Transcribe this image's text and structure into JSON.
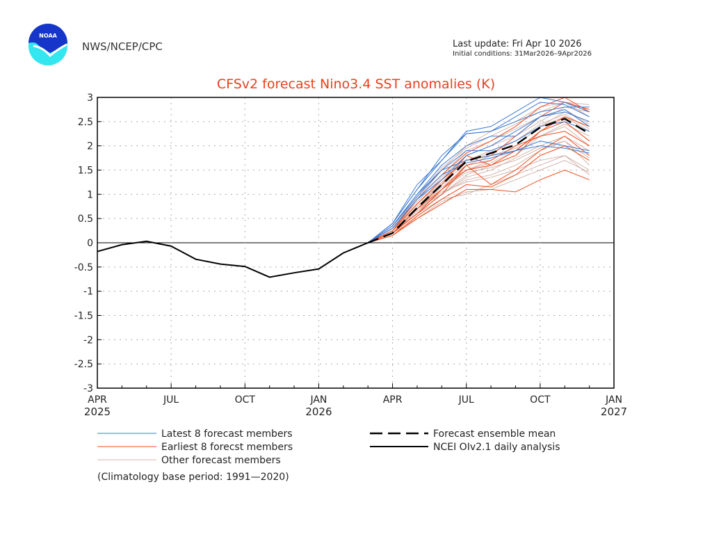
{
  "header": {
    "agency": "NWS/NCEP/CPC",
    "logo_text": "NOAA",
    "last_update": "Last update: Fri Apr 10 2026",
    "initial_conditions": "Initial conditions: 31Mar2026–9Apr2026"
  },
  "chart_data": {
    "type": "line",
    "title": "CFSv2 forecast Nino3.4 SST anomalies (K)",
    "ylim": [
      -3,
      3
    ],
    "yticks": [
      "3",
      "2.5",
      "2",
      "1.5",
      "1",
      "0.5",
      "0",
      "-0.5",
      "-1",
      "-1.5",
      "-2",
      "-2.5",
      "-3"
    ],
    "xticks": [
      {
        "month": "APR",
        "year": "2025"
      },
      {
        "month": "JUL",
        "year": ""
      },
      {
        "month": "OCT",
        "year": ""
      },
      {
        "month": "JAN",
        "year": "2026"
      },
      {
        "month": "APR",
        "year": ""
      },
      {
        "month": "JUL",
        "year": ""
      },
      {
        "month": "OCT",
        "year": ""
      },
      {
        "month": "JAN",
        "year": "2027"
      }
    ],
    "grid": true,
    "colors": {
      "latest": "#3a78d0",
      "earliest": "#f04a1a",
      "other": "#d4b4ac",
      "title": "#e8401c"
    },
    "analysis": {
      "name": "NCEI OIv2.1 daily analysis",
      "x": [
        "2025-04",
        "2025-05",
        "2025-06",
        "2025-07",
        "2025-08",
        "2025-09",
        "2025-10",
        "2025-11",
        "2025-12",
        "2026-01",
        "2026-02",
        "2026-03"
      ],
      "values": [
        -0.18,
        -0.04,
        0.03,
        -0.07,
        -0.34,
        -0.44,
        -0.49,
        -0.71,
        -0.62,
        -0.54,
        -0.21,
        0.0
      ]
    },
    "forecast_x": [
      "2026-03",
      "2026-04",
      "2026-05",
      "2026-06",
      "2026-07",
      "2026-08",
      "2026-09",
      "2026-10",
      "2026-11",
      "2026-12"
    ],
    "mean": {
      "name": "Forecast ensemble mean",
      "values": [
        0,
        0.2,
        0.72,
        1.2,
        1.68,
        1.85,
        2.02,
        2.38,
        2.56,
        2.25
      ]
    },
    "latest": {
      "name": "Latest 8 forecast members",
      "members": [
        [
          0,
          0.4,
          1.2,
          1.7,
          2.3,
          2.4,
          2.7,
          3.0,
          2.9,
          2.7
        ],
        [
          0,
          0.4,
          1.1,
          1.8,
          2.25,
          2.3,
          2.5,
          2.7,
          2.8,
          2.8
        ],
        [
          0,
          0.35,
          1.0,
          1.6,
          2.0,
          2.2,
          2.2,
          2.6,
          2.75,
          2.4
        ],
        [
          0,
          0.35,
          0.95,
          1.5,
          1.7,
          1.8,
          1.9,
          2.1,
          2.0,
          1.9
        ],
        [
          0,
          0.3,
          0.9,
          1.4,
          1.65,
          1.75,
          1.9,
          2.0,
          1.95,
          1.85
        ],
        [
          0,
          0.4,
          1.1,
          1.7,
          2.25,
          2.3,
          2.6,
          2.9,
          2.85,
          2.6
        ],
        [
          0,
          0.3,
          0.9,
          1.3,
          1.8,
          2.0,
          2.3,
          2.6,
          2.7,
          2.5
        ],
        [
          0,
          0.35,
          1.0,
          1.5,
          1.9,
          1.9,
          2.1,
          2.4,
          2.5,
          2.3
        ]
      ]
    },
    "earliest": {
      "name": "Earliest 8 forecst members",
      "members": [
        [
          0,
          0.15,
          0.5,
          0.8,
          1.1,
          1.1,
          1.05,
          1.3,
          1.5,
          1.3
        ],
        [
          0,
          0.2,
          0.6,
          1.0,
          1.6,
          1.2,
          1.5,
          1.9,
          2.2,
          1.8
        ],
        [
          0,
          0.2,
          0.7,
          1.2,
          1.8,
          1.6,
          1.8,
          2.3,
          2.6,
          2.4
        ],
        [
          0,
          0.25,
          0.8,
          1.3,
          1.7,
          1.8,
          2.2,
          2.6,
          2.9,
          2.75
        ],
        [
          0,
          0.2,
          0.6,
          1.1,
          1.5,
          1.6,
          1.9,
          2.3,
          2.5,
          2.1
        ],
        [
          0,
          0.15,
          0.55,
          0.9,
          1.2,
          1.15,
          1.4,
          1.8,
          2.0,
          1.7
        ],
        [
          0,
          0.25,
          0.9,
          1.4,
          1.85,
          2.1,
          2.4,
          2.8,
          3.0,
          2.7
        ],
        [
          0,
          0.2,
          0.7,
          1.1,
          1.6,
          1.7,
          2.0,
          2.2,
          2.3,
          2.0
        ]
      ]
    },
    "other": {
      "name": "Other forecast members",
      "members": [
        [
          0,
          0.2,
          0.6,
          0.9,
          1.0,
          1.2,
          1.4,
          1.6,
          1.8,
          1.5
        ],
        [
          0,
          0.25,
          0.7,
          1.0,
          1.3,
          1.4,
          1.6,
          1.9,
          2.1,
          1.6
        ],
        [
          0,
          0.3,
          0.8,
          1.3,
          1.7,
          1.9,
          2.1,
          2.4,
          2.6,
          2.3
        ],
        [
          0,
          0.2,
          0.6,
          1.0,
          1.4,
          1.6,
          1.8,
          2.2,
          2.4,
          2.0
        ],
        [
          0,
          0.3,
          0.9,
          1.5,
          2.0,
          2.3,
          2.5,
          2.8,
          2.9,
          2.6
        ],
        [
          0,
          0.25,
          0.75,
          1.2,
          1.5,
          1.7,
          2.0,
          2.4,
          2.7,
          2.5
        ],
        [
          0,
          0.2,
          0.65,
          1.05,
          1.25,
          1.35,
          1.5,
          1.7,
          1.8,
          1.4
        ],
        [
          0,
          0.3,
          0.85,
          1.35,
          1.8,
          2.0,
          2.2,
          2.5,
          2.8,
          2.7
        ],
        [
          0,
          0.2,
          0.5,
          0.85,
          1.05,
          1.1,
          1.3,
          1.5,
          1.7,
          1.45
        ],
        [
          0,
          0.25,
          0.8,
          1.25,
          1.6,
          1.8,
          1.95,
          2.2,
          2.45,
          2.2
        ],
        [
          0,
          0.3,
          0.95,
          1.55,
          1.95,
          2.2,
          2.45,
          2.7,
          2.9,
          2.85
        ],
        [
          0,
          0.2,
          0.6,
          1.0,
          1.35,
          1.5,
          1.75,
          2.0,
          2.2,
          1.9
        ],
        [
          0,
          0.25,
          0.7,
          1.15,
          1.5,
          1.65,
          1.9,
          2.3,
          2.6,
          2.3
        ],
        [
          0,
          0.3,
          0.9,
          1.4,
          1.9,
          2.1,
          2.35,
          2.6,
          2.75,
          2.45
        ],
        [
          0,
          0.2,
          0.65,
          1.1,
          1.45,
          1.55,
          1.7,
          1.95,
          2.1,
          1.75
        ],
        [
          0,
          0.25,
          0.75,
          1.25,
          1.7,
          1.85,
          2.1,
          2.45,
          2.65,
          2.35
        ]
      ]
    },
    "footnote": "(Climatology base period: 1991—2020)"
  }
}
